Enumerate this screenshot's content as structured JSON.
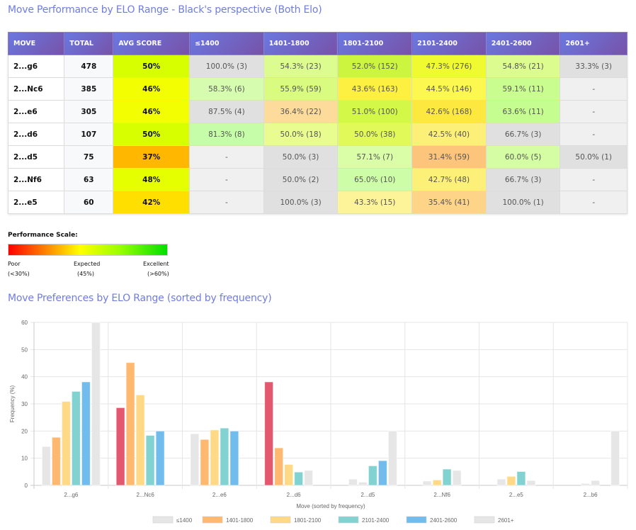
{
  "performance": {
    "title": "Move Performance by ELO Range - Black's perspective (Both Elo)",
    "headers": [
      "MOVE",
      "TOTAL",
      "AVG SCORE",
      "≤1400",
      "1401-1800",
      "1801-2100",
      "2101-2400",
      "2401-2600",
      "2601+"
    ],
    "rows": [
      {
        "move": "2...g6",
        "total": "478",
        "avg": "50%",
        "avg_color": "#d7ff00",
        "cells": [
          {
            "text": "100.0% (3)",
            "color": "#e0e0e0"
          },
          {
            "text": "54.3% (23)",
            "color": "#ddfc90"
          },
          {
            "text": "52.0% (152)",
            "color": "#ccf540"
          },
          {
            "text": "47.3% (276)",
            "color": "#f0fa30"
          },
          {
            "text": "54.8% (21)",
            "color": "#ddfc90"
          },
          {
            "text": "33.3% (3)",
            "color": "#e0e0e0"
          }
        ]
      },
      {
        "move": "2...Nc6",
        "total": "385",
        "avg": "46%",
        "avg_color": "#f3ff00",
        "cells": [
          {
            "text": "58.3% (6)",
            "color": "#d6fcb0"
          },
          {
            "text": "55.9% (59)",
            "color": "#d8fb80"
          },
          {
            "text": "43.6% (163)",
            "color": "#fdf040"
          },
          {
            "text": "44.5% (146)",
            "color": "#fcf850"
          },
          {
            "text": "59.1% (11)",
            "color": "#cafd90"
          },
          {
            "text": "-",
            "color": "#f0f0f0"
          }
        ]
      },
      {
        "move": "2...e6",
        "total": "305",
        "avg": "46%",
        "avg_color": "#f3ff00",
        "cells": [
          {
            "text": "87.5% (4)",
            "color": "#e0e0e0"
          },
          {
            "text": "36.4% (22)",
            "color": "#fddb9a"
          },
          {
            "text": "51.0% (100)",
            "color": "#d4f848"
          },
          {
            "text": "42.6% (168)",
            "color": "#fde840"
          },
          {
            "text": "63.6% (11)",
            "color": "#c6fd90"
          },
          {
            "text": "-",
            "color": "#f0f0f0"
          }
        ]
      },
      {
        "move": "2...d6",
        "total": "107",
        "avg": "50%",
        "avg_color": "#d7ff00",
        "cells": [
          {
            "text": "81.3% (8)",
            "color": "#c6fda8"
          },
          {
            "text": "50.0% (18)",
            "color": "#e8fc90"
          },
          {
            "text": "50.0% (38)",
            "color": "#e2f95a"
          },
          {
            "text": "42.5% (40)",
            "color": "#fdf078"
          },
          {
            "text": "66.7% (3)",
            "color": "#e0e0e0"
          },
          {
            "text": "-",
            "color": "#f0f0f0"
          }
        ]
      },
      {
        "move": "2...d5",
        "total": "75",
        "avg": "37%",
        "avg_color": "#ffb700",
        "cells": [
          {
            "text": "-",
            "color": "#f0f0f0"
          },
          {
            "text": "50.0% (3)",
            "color": "#e0e0e0"
          },
          {
            "text": "57.1% (7)",
            "color": "#dafda8"
          },
          {
            "text": "31.4% (59)",
            "color": "#fdc47c"
          },
          {
            "text": "60.0% (5)",
            "color": "#d4fda4"
          },
          {
            "text": "50.0% (1)",
            "color": "#e0e0e0"
          }
        ]
      },
      {
        "move": "2...Nf6",
        "total": "63",
        "avg": "48%",
        "avg_color": "#e6ff00",
        "cells": [
          {
            "text": "-",
            "color": "#f0f0f0"
          },
          {
            "text": "50.0% (2)",
            "color": "#e0e0e0"
          },
          {
            "text": "65.0% (10)",
            "color": "#cefda8"
          },
          {
            "text": "42.7% (48)",
            "color": "#fdf078"
          },
          {
            "text": "66.7% (3)",
            "color": "#e0e0e0"
          },
          {
            "text": "-",
            "color": "#f0f0f0"
          }
        ]
      },
      {
        "move": "2...e5",
        "total": "60",
        "avg": "42%",
        "avg_color": "#ffdf00",
        "cells": [
          {
            "text": "-",
            "color": "#f0f0f0"
          },
          {
            "text": "100.0% (3)",
            "color": "#e0e0e0"
          },
          {
            "text": "43.3% (15)",
            "color": "#fdf49a"
          },
          {
            "text": "35.4% (41)",
            "color": "#fdd488"
          },
          {
            "text": "100.0% (1)",
            "color": "#e0e0e0"
          },
          {
            "text": "-",
            "color": "#f0f0f0"
          }
        ]
      }
    ]
  },
  "scale": {
    "title": "Performance Scale:",
    "poor": "Poor",
    "poor_sub": "(<30%)",
    "expected": "Expected",
    "expected_sub": "(45%)",
    "excellent": "Excellent",
    "excellent_sub": "(>60%)"
  },
  "preferences": {
    "title": "Move Preferences by ELO Range (sorted by frequency)"
  },
  "chart_data": {
    "type": "bar",
    "title": "Move Preferences by ELO Range (sorted by frequency)",
    "xlabel": "Move (sorted by frequency)",
    "ylabel": "Frequency (%)",
    "ylim": [
      0,
      60
    ],
    "yticks": [
      0,
      10,
      20,
      30,
      40,
      50,
      60
    ],
    "grid": true,
    "legend_position": "bottom",
    "categories": [
      "2...g6",
      "2...Nc6",
      "2...e6",
      "2...d6",
      "2...d5",
      "2...Nf6",
      "2...e5",
      "2...b6"
    ],
    "series": [
      {
        "name": "≤1400",
        "color": "#e6e6e6",
        "values": [
          14.3,
          28.6,
          19.0,
          38.1,
          0,
          0,
          0,
          0
        ],
        "bar_colors": [
          "#e6e6e6",
          "#e4586f",
          "#e6e6e6",
          "#e4586f",
          "#e6e6e6",
          "#e6e6e6",
          "#e6e6e6",
          "#e6e6e6"
        ]
      },
      {
        "name": "1401-1800",
        "color": "#ffb870",
        "values": [
          17.7,
          45.2,
          16.9,
          13.8,
          2.3,
          1.6,
          2.3,
          0
        ],
        "bar_colors": [
          "#ffb870",
          "#ffb870",
          "#ffb870",
          "#ffb870",
          "#e6e6e6",
          "#e6e6e6",
          "#e6e6e6",
          "#e6e6e6"
        ]
      },
      {
        "name": "1801-2100",
        "color": "#ffd985",
        "values": [
          30.9,
          33.3,
          20.4,
          7.7,
          1.2,
          2.0,
          3.3,
          0.7
        ],
        "bar_colors": [
          "#ffd985",
          "#ffd985",
          "#ffd985",
          "#ffd985",
          "#e6e6e6",
          "#ffd985",
          "#ffd985",
          "#e6e6e6"
        ]
      },
      {
        "name": "2101-2400",
        "color": "#82d2d2",
        "values": [
          34.6,
          18.4,
          21.1,
          4.9,
          7.2,
          6.0,
          5.1,
          1.8
        ],
        "bar_colors": [
          "#82d2d2",
          "#82d2d2",
          "#82d2d2",
          "#82d2d2",
          "#82d2d2",
          "#82d2d2",
          "#82d2d2",
          "#e6e6e6"
        ]
      },
      {
        "name": "2401-2600",
        "color": "#72bced",
        "values": [
          38.1,
          20.0,
          20.0,
          5.5,
          9.1,
          5.5,
          1.8,
          0
        ],
        "bar_colors": [
          "#72bced",
          "#72bced",
          "#72bced",
          "#e6e6e6",
          "#72bced",
          "#e6e6e6",
          "#e6e6e6",
          "#e6e6e6"
        ]
      },
      {
        "name": "2601+",
        "color": "#e6e6e6",
        "values": [
          60,
          0,
          0,
          0,
          20.0,
          0,
          0,
          20.0
        ],
        "bar_colors": [
          "#e6e6e6",
          "#e6e6e6",
          "#e6e6e6",
          "#e6e6e6",
          "#e6e6e6",
          "#e6e6e6",
          "#e6e6e6",
          "#e6e6e6"
        ]
      }
    ]
  }
}
